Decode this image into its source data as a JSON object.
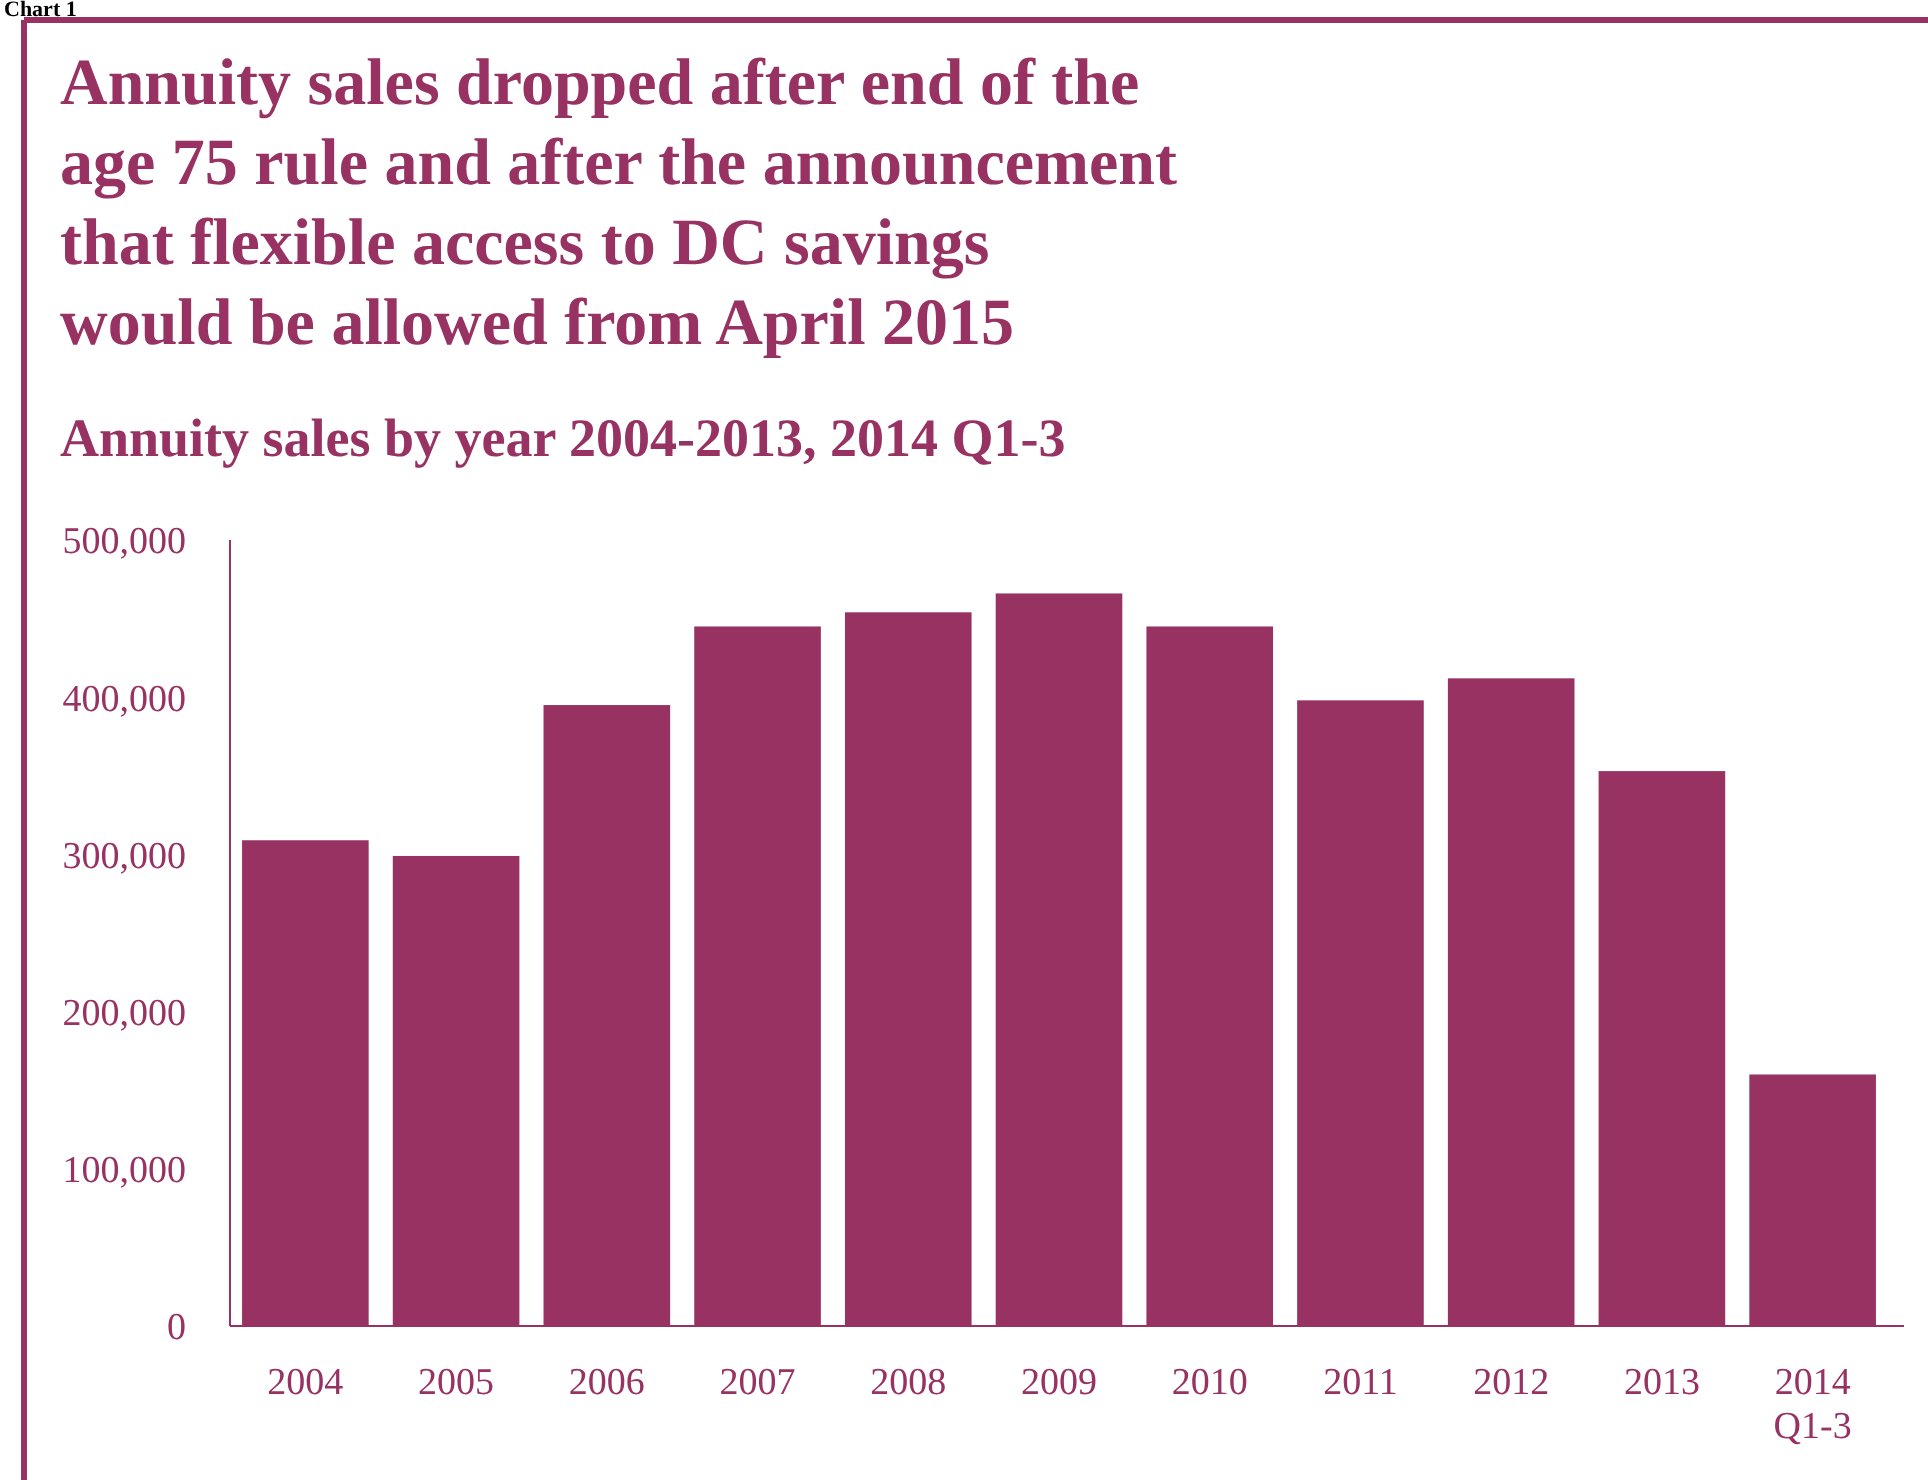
{
  "chart_data": {
    "type": "bar",
    "title": "Annuity sales dropped after end of the age 75 rule and after the announcement that flexible access to DC savings would be allowed from April 2015",
    "subtitle": "Annuity sales by year 2004-2013, 2014 Q1-3",
    "annotations": [
      "Chart 1"
    ],
    "categories": [
      "2004",
      "2005",
      "2006",
      "2007",
      "2008",
      "2009",
      "2010",
      "2011",
      "2012",
      "2013",
      "2014 Q1-3"
    ],
    "values": [
      309000,
      299000,
      395000,
      445000,
      454000,
      466000,
      445000,
      398000,
      412000,
      353000,
      160000
    ],
    "color": "#973262",
    "ylim": [
      0,
      500000
    ],
    "yticks": [
      {
        "value": 0,
        "label": "0"
      },
      {
        "value": 100000,
        "label": "100,000"
      },
      {
        "value": 200000,
        "label": "200,000"
      },
      {
        "value": 300000,
        "label": "300,000"
      },
      {
        "value": 400000,
        "label": "400,000"
      },
      {
        "value": 500000,
        "label": "500,000"
      }
    ],
    "grid": false
  }
}
